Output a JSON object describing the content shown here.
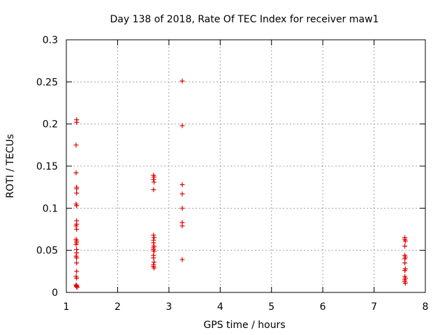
{
  "chart_data": {
    "type": "scatter",
    "title": "Day 138 of 2018, Rate Of TEC Index for receiver maw1",
    "xlabel": "GPS time / hours",
    "ylabel": "ROTI / TECUs",
    "xlim": [
      1,
      8
    ],
    "ylim": [
      0,
      0.3
    ],
    "x_ticks": [
      1,
      2,
      3,
      4,
      5,
      6,
      7,
      8
    ],
    "x_tick_labels": [
      "1",
      "2",
      "3",
      "4",
      "5",
      "6",
      "7",
      "8"
    ],
    "y_ticks": [
      0,
      0.05,
      0.1,
      0.15,
      0.2,
      0.25,
      0.3
    ],
    "y_tick_labels": [
      "0",
      "0.05",
      "0.1",
      "0.15",
      "0.2",
      "0.25",
      "0.3"
    ],
    "grid": true,
    "legend": "none",
    "marker": "+",
    "color": "#e00000",
    "points": [
      {
        "x": 1.2,
        "y": 0.205
      },
      {
        "x": 1.2,
        "y": 0.202
      },
      {
        "x": 1.19,
        "y": 0.175
      },
      {
        "x": 1.19,
        "y": 0.142
      },
      {
        "x": 1.2,
        "y": 0.125
      },
      {
        "x": 1.2,
        "y": 0.123
      },
      {
        "x": 1.2,
        "y": 0.118
      },
      {
        "x": 1.19,
        "y": 0.105
      },
      {
        "x": 1.2,
        "y": 0.103
      },
      {
        "x": 1.2,
        "y": 0.085
      },
      {
        "x": 1.2,
        "y": 0.081
      },
      {
        "x": 1.19,
        "y": 0.079
      },
      {
        "x": 1.2,
        "y": 0.075
      },
      {
        "x": 1.19,
        "y": 0.063
      },
      {
        "x": 1.2,
        "y": 0.061
      },
      {
        "x": 1.2,
        "y": 0.059
      },
      {
        "x": 1.19,
        "y": 0.057
      },
      {
        "x": 1.2,
        "y": 0.051
      },
      {
        "x": 1.2,
        "y": 0.047
      },
      {
        "x": 1.19,
        "y": 0.043
      },
      {
        "x": 1.2,
        "y": 0.041
      },
      {
        "x": 1.2,
        "y": 0.035
      },
      {
        "x": 1.2,
        "y": 0.025
      },
      {
        "x": 1.19,
        "y": 0.019
      },
      {
        "x": 1.2,
        "y": 0.017
      },
      {
        "x": 1.19,
        "y": 0.009
      },
      {
        "x": 1.2,
        "y": 0.008
      },
      {
        "x": 1.2,
        "y": 0.007
      },
      {
        "x": 1.21,
        "y": 0.006
      },
      {
        "x": 2.7,
        "y": 0.139
      },
      {
        "x": 2.71,
        "y": 0.137
      },
      {
        "x": 2.7,
        "y": 0.134
      },
      {
        "x": 2.71,
        "y": 0.131
      },
      {
        "x": 2.7,
        "y": 0.122
      },
      {
        "x": 2.7,
        "y": 0.068
      },
      {
        "x": 2.71,
        "y": 0.065
      },
      {
        "x": 2.7,
        "y": 0.062
      },
      {
        "x": 2.7,
        "y": 0.059
      },
      {
        "x": 2.71,
        "y": 0.055
      },
      {
        "x": 2.7,
        "y": 0.053
      },
      {
        "x": 2.7,
        "y": 0.051
      },
      {
        "x": 2.71,
        "y": 0.049
      },
      {
        "x": 2.7,
        "y": 0.044
      },
      {
        "x": 2.7,
        "y": 0.041
      },
      {
        "x": 2.71,
        "y": 0.036
      },
      {
        "x": 2.7,
        "y": 0.033
      },
      {
        "x": 2.7,
        "y": 0.031
      },
      {
        "x": 2.71,
        "y": 0.029
      },
      {
        "x": 3.26,
        "y": 0.251
      },
      {
        "x": 3.26,
        "y": 0.198
      },
      {
        "x": 3.26,
        "y": 0.128
      },
      {
        "x": 3.26,
        "y": 0.117
      },
      {
        "x": 3.26,
        "y": 0.1
      },
      {
        "x": 3.26,
        "y": 0.083
      },
      {
        "x": 3.26,
        "y": 0.079
      },
      {
        "x": 3.26,
        "y": 0.039
      },
      {
        "x": 7.6,
        "y": 0.065
      },
      {
        "x": 7.6,
        "y": 0.063
      },
      {
        "x": 7.61,
        "y": 0.061
      },
      {
        "x": 7.6,
        "y": 0.055
      },
      {
        "x": 7.6,
        "y": 0.044
      },
      {
        "x": 7.61,
        "y": 0.042
      },
      {
        "x": 7.6,
        "y": 0.04
      },
      {
        "x": 7.6,
        "y": 0.035
      },
      {
        "x": 7.61,
        "y": 0.028
      },
      {
        "x": 7.6,
        "y": 0.026
      },
      {
        "x": 7.6,
        "y": 0.019
      },
      {
        "x": 7.61,
        "y": 0.017
      },
      {
        "x": 7.6,
        "y": 0.015
      },
      {
        "x": 7.6,
        "y": 0.013
      },
      {
        "x": 7.61,
        "y": 0.011
      }
    ]
  }
}
